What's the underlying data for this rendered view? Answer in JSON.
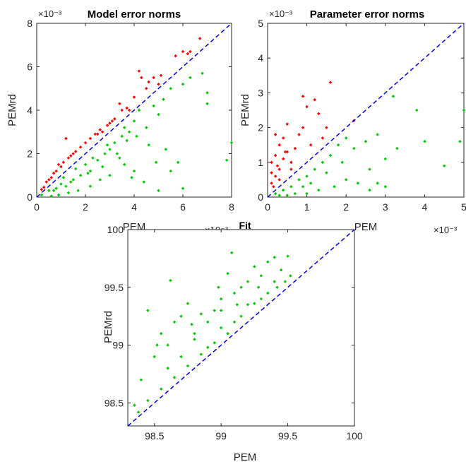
{
  "colors": {
    "above": "#ff0000",
    "below": "#00cc00",
    "diagonal": "#0000ee",
    "axis": "#262626"
  },
  "chart_data": [
    {
      "id": "model",
      "type": "scatter",
      "title": "Model error norms",
      "xlabel": "PEM",
      "ylabel": "PEMrd",
      "xlim": [
        0,
        8
      ],
      "ylim": [
        0,
        8
      ],
      "xticks": [
        "0",
        "2",
        "4",
        "6",
        "8"
      ],
      "yticks": [
        "0",
        "2",
        "4",
        "6",
        "8"
      ],
      "xtick_values": [
        0,
        2,
        4,
        6,
        8
      ],
      "ytick_values": [
        0,
        2,
        4,
        6,
        8
      ],
      "x_exponent": "×10⁻³",
      "y_exponent": "×10⁻³",
      "grid": false,
      "diagonal": true,
      "series": [
        {
          "color_key": "above",
          "points": [
            [
              0.3,
              0.45
            ],
            [
              0.5,
              0.8
            ],
            [
              0.6,
              0.9
            ],
            [
              0.8,
              1.2
            ],
            [
              1.0,
              1.4
            ],
            [
              1.1,
              1.6
            ],
            [
              1.3,
              1.8
            ],
            [
              1.5,
              2.0
            ],
            [
              1.6,
              2.1
            ],
            [
              1.8,
              2.3
            ],
            [
              2.0,
              2.5
            ],
            [
              2.2,
              2.7
            ],
            [
              2.4,
              2.9
            ],
            [
              2.5,
              2.9
            ],
            [
              2.7,
              3.0
            ],
            [
              2.9,
              3.3
            ],
            [
              3.0,
              3.4
            ],
            [
              3.2,
              3.6
            ],
            [
              3.4,
              4.3
            ],
            [
              3.5,
              4.0
            ],
            [
              3.7,
              4.1
            ],
            [
              3.8,
              4.0
            ],
            [
              4.0,
              4.6
            ],
            [
              4.2,
              5.8
            ],
            [
              4.3,
              5.5
            ],
            [
              4.5,
              5.0
            ],
            [
              4.6,
              5.3
            ],
            [
              4.8,
              5.5
            ],
            [
              5.0,
              5.2
            ],
            [
              5.1,
              5.6
            ],
            [
              5.7,
              6.5
            ],
            [
              6.0,
              6.7
            ],
            [
              6.2,
              6.6
            ],
            [
              6.3,
              6.7
            ],
            [
              6.7,
              7.3
            ],
            [
              1.2,
              2.7
            ],
            [
              0.9,
              1.5
            ],
            [
              0.4,
              0.7
            ],
            [
              0.2,
              0.35
            ],
            [
              0.7,
              1.1
            ],
            [
              1.4,
              1.9
            ],
            [
              2.6,
              3.1
            ],
            [
              3.1,
              3.5
            ]
          ]
        },
        {
          "color_key": "below",
          "points": [
            [
              0.2,
              0.1
            ],
            [
              0.5,
              0.3
            ],
            [
              0.8,
              0.4
            ],
            [
              1.0,
              0.6
            ],
            [
              1.2,
              0.5
            ],
            [
              1.5,
              0.8
            ],
            [
              1.8,
              1.0
            ],
            [
              2.0,
              1.5
            ],
            [
              2.2,
              1.2
            ],
            [
              2.5,
              1.7
            ],
            [
              2.8,
              2.0
            ],
            [
              3.0,
              2.2
            ],
            [
              3.2,
              2.5
            ],
            [
              3.5,
              2.8
            ],
            [
              3.8,
              3.0
            ],
            [
              4.0,
              3.5
            ],
            [
              4.2,
              4.0
            ],
            [
              4.5,
              3.2
            ],
            [
              5.0,
              3.8
            ],
            [
              5.2,
              4.5
            ],
            [
              5.5,
              5.0
            ],
            [
              6.0,
              5.2
            ],
            [
              6.3,
              5.5
            ],
            [
              6.8,
              5.7
            ],
            [
              7.0,
              4.8
            ],
            [
              7.0,
              4.3
            ],
            [
              8.0,
              2.5
            ],
            [
              7.8,
              1.7
            ],
            [
              6.0,
              0.4
            ],
            [
              5.0,
              0.3
            ],
            [
              4.4,
              0.7
            ],
            [
              4.0,
              1.2
            ],
            [
              3.6,
              1.5
            ],
            [
              3.0,
              1.0
            ],
            [
              2.6,
              0.8
            ],
            [
              2.2,
              0.5
            ],
            [
              1.7,
              0.3
            ],
            [
              1.3,
              0.2
            ],
            [
              0.9,
              0.1
            ],
            [
              0.6,
              0.05
            ],
            [
              1.1,
              0.9
            ],
            [
              1.6,
              1.3
            ],
            [
              2.3,
              1.8
            ],
            [
              2.9,
              2.4
            ],
            [
              3.3,
              2.0
            ],
            [
              3.7,
              2.6
            ],
            [
              4.1,
              2.8
            ],
            [
              4.6,
              2.4
            ],
            [
              4.9,
              1.6
            ],
            [
              5.3,
              2.2
            ],
            [
              3.9,
              0.9
            ],
            [
              3.4,
              1.8
            ],
            [
              2.7,
              1.4
            ],
            [
              2.1,
              1.1
            ],
            [
              1.4,
              0.7
            ],
            [
              0.7,
              0.3
            ],
            [
              5.8,
              1.6
            ],
            [
              5.5,
              1.2
            ],
            [
              4.8,
              4.2
            ],
            [
              3.6,
              3.2
            ]
          ]
        }
      ]
    },
    {
      "id": "param",
      "type": "scatter",
      "title": "Parameter error norms",
      "xlabel": "PEM",
      "ylabel": "PEMrd",
      "xlim": [
        0,
        5
      ],
      "ylim": [
        0,
        5
      ],
      "xticks": [
        "0",
        "1",
        "2",
        "3",
        "4",
        "5"
      ],
      "yticks": [
        "0",
        "1",
        "2",
        "3",
        "4",
        "5"
      ],
      "xtick_values": [
        0,
        1,
        2,
        3,
        4,
        5
      ],
      "ytick_values": [
        0,
        1,
        2,
        3,
        4,
        5
      ],
      "x_exponent": "×10⁻³",
      "y_exponent": "×10⁻³",
      "grid": false,
      "diagonal": true,
      "series": [
        {
          "color_key": "above",
          "points": [
            [
              0.1,
              0.4
            ],
            [
              0.2,
              0.6
            ],
            [
              0.3,
              0.8
            ],
            [
              0.1,
              1.0
            ],
            [
              0.2,
              1.2
            ],
            [
              0.3,
              1.5
            ],
            [
              0.4,
              1.7
            ],
            [
              0.5,
              1.3
            ],
            [
              0.6,
              1.0
            ],
            [
              0.7,
              1.4
            ],
            [
              0.8,
              1.8
            ],
            [
              0.9,
              2.0
            ],
            [
              1.0,
              2.6
            ],
            [
              0.9,
              2.9
            ],
            [
              1.2,
              2.8
            ],
            [
              1.3,
              2.4
            ],
            [
              1.5,
              2.0
            ],
            [
              1.6,
              3.3
            ],
            [
              1.4,
              1.7
            ],
            [
              1.1,
              1.5
            ],
            [
              0.5,
              2.1
            ],
            [
              0.2,
              1.8
            ],
            [
              0.4,
              1.1
            ],
            [
              0.3,
              0.5
            ],
            [
              0.15,
              0.3
            ],
            [
              0.6,
              0.8
            ],
            [
              2.2,
              2.2
            ],
            [
              0.1,
              0.7
            ],
            [
              0.25,
              0.9
            ],
            [
              0.45,
              1.3
            ]
          ]
        },
        {
          "color_key": "below",
          "points": [
            [
              0.2,
              0.1
            ],
            [
              0.4,
              0.2
            ],
            [
              0.6,
              0.3
            ],
            [
              0.8,
              0.5
            ],
            [
              1.0,
              0.6
            ],
            [
              1.2,
              0.8
            ],
            [
              1.4,
              1.0
            ],
            [
              1.6,
              1.2
            ],
            [
              1.8,
              1.5
            ],
            [
              2.0,
              1.7
            ],
            [
              2.2,
              1.4
            ],
            [
              2.5,
              1.6
            ],
            [
              2.8,
              1.8
            ],
            [
              3.2,
              2.9
            ],
            [
              3.8,
              2.5
            ],
            [
              4.0,
              1.6
            ],
            [
              4.5,
              0.9
            ],
            [
              5.0,
              2.5
            ],
            [
              4.9,
              1.6
            ],
            [
              3.0,
              1.1
            ],
            [
              2.6,
              0.8
            ],
            [
              2.3,
              0.4
            ],
            [
              2.0,
              0.5
            ],
            [
              1.7,
              0.3
            ],
            [
              1.3,
              0.2
            ],
            [
              1.0,
              0.1
            ],
            [
              0.7,
              0.1
            ],
            [
              0.5,
              0.05
            ],
            [
              1.5,
              0.7
            ],
            [
              2.8,
              0.4
            ],
            [
              3.0,
              0.3
            ],
            [
              1.9,
              1.0
            ],
            [
              1.1,
              0.4
            ],
            [
              0.9,
              0.3
            ],
            [
              0.3,
              0.05
            ],
            [
              2.6,
              0.2
            ],
            [
              3.3,
              1.4
            ]
          ]
        }
      ]
    },
    {
      "id": "fit",
      "type": "scatter",
      "title": "Fit",
      "xlabel": "PEM",
      "ylabel": "PEMrd",
      "xlim": [
        98.3,
        100
      ],
      "ylim": [
        98.3,
        100
      ],
      "xticks": [
        "98.5",
        "99",
        "99.5",
        "100"
      ],
      "yticks": [
        "98.5",
        "99",
        "99.5",
        "100"
      ],
      "xtick_values": [
        98.5,
        99,
        99.5,
        100
      ],
      "ytick_values": [
        98.5,
        99,
        99.5,
        100
      ],
      "grid": false,
      "diagonal": true,
      "series": [
        {
          "color_key": "below",
          "points": [
            [
              98.35,
              98.48
            ],
            [
              98.4,
              98.7
            ],
            [
              98.45,
              99.3
            ],
            [
              98.5,
              98.9
            ],
            [
              98.55,
              99.1
            ],
            [
              98.6,
              99.0
            ],
            [
              98.62,
              99.56
            ],
            [
              98.65,
              99.2
            ],
            [
              98.7,
              99.25
            ],
            [
              98.75,
              99.36
            ],
            [
              98.8,
              99.1
            ],
            [
              98.85,
              99.27
            ],
            [
              98.9,
              99.2
            ],
            [
              98.95,
              99.3
            ],
            [
              99.0,
              99.4
            ],
            [
              99.05,
              99.62
            ],
            [
              99.08,
              99.8
            ],
            [
              99.1,
              99.45
            ],
            [
              99.15,
              99.5
            ],
            [
              99.2,
              99.55
            ],
            [
              99.25,
              99.68
            ],
            [
              99.3,
              99.6
            ],
            [
              99.35,
              99.72
            ],
            [
              99.4,
              99.76
            ],
            [
              99.45,
              99.65
            ],
            [
              99.5,
              99.77
            ],
            [
              99.48,
              99.55
            ],
            [
              99.52,
              99.6
            ],
            [
              99.42,
              99.5
            ],
            [
              99.35,
              99.45
            ],
            [
              99.25,
              99.36
            ],
            [
              99.15,
              99.25
            ],
            [
              99.05,
              99.1
            ],
            [
              98.95,
              99.02
            ],
            [
              98.85,
              98.92
            ],
            [
              98.75,
              98.82
            ],
            [
              98.65,
              98.72
            ],
            [
              98.55,
              98.62
            ],
            [
              98.45,
              98.52
            ],
            [
              98.38,
              98.42
            ],
            [
              98.7,
              98.9
            ],
            [
              98.8,
              99.05
            ],
            [
              98.9,
              98.98
            ],
            [
              99.0,
              99.15
            ],
            [
              99.1,
              99.2
            ],
            [
              99.2,
              99.35
            ],
            [
              99.3,
              99.4
            ],
            [
              99.4,
              99.55
            ],
            [
              99.0,
              99.3
            ],
            [
              98.6,
              98.8
            ],
            [
              98.52,
              99.0
            ],
            [
              98.98,
              99.5
            ],
            [
              99.12,
              99.35
            ],
            [
              99.28,
              99.5
            ],
            [
              98.78,
              99.18
            ]
          ]
        }
      ]
    }
  ]
}
